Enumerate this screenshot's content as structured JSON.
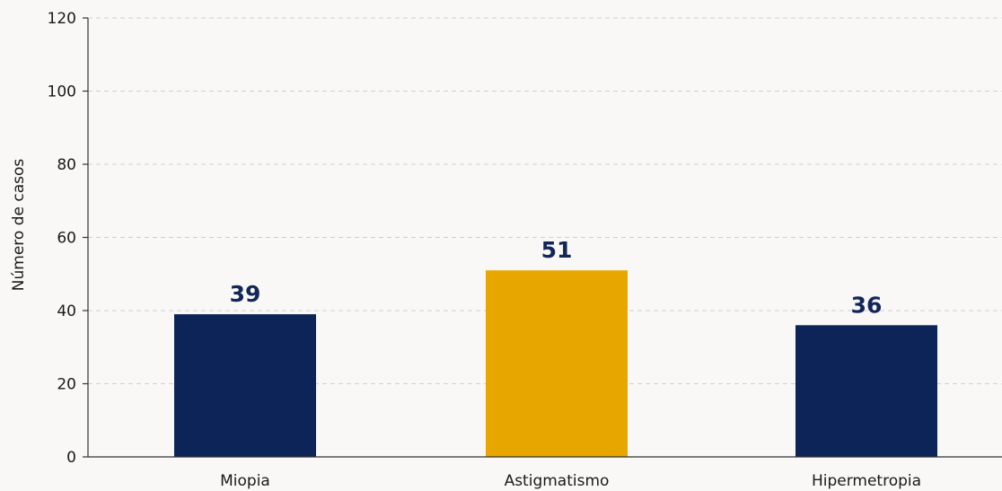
{
  "chart_data": {
    "type": "bar",
    "categories": [
      "Miopia",
      "Astigmatismo",
      "Hipermetropia"
    ],
    "values": [
      39,
      51,
      36
    ],
    "data_labels": [
      "39",
      "51",
      "36"
    ],
    "bar_colors": [
      "#0c2457",
      "#e8a600",
      "#0c2457"
    ],
    "data_label_color": "#12265a",
    "title": "",
    "xlabel": "",
    "ylabel": "Número de casos",
    "ylim": [
      0,
      120
    ],
    "yticks": [
      0,
      20,
      40,
      60,
      80,
      100,
      120
    ],
    "ytick_labels": [
      "0",
      "20",
      "40",
      "60",
      "80",
      "100",
      "120"
    ],
    "grid": true,
    "legend": "none"
  }
}
